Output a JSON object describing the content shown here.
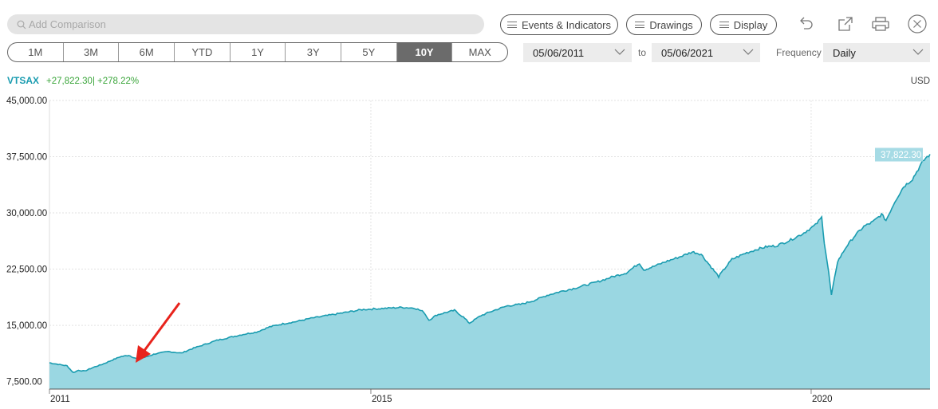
{
  "search": {
    "placeholder": "Add Comparison"
  },
  "toolbar": {
    "events_label": "Events & Indicators",
    "drawings_label": "Drawings",
    "display_label": "Display"
  },
  "icons": [
    "search-icon",
    "undo-icon",
    "popout-icon",
    "print-icon",
    "close-icon"
  ],
  "periods": [
    "1M",
    "3M",
    "6M",
    "YTD",
    "1Y",
    "3Y",
    "5Y",
    "10Y",
    "MAX"
  ],
  "active_period": "10Y",
  "date_range": {
    "start": "05/06/2011",
    "to_label": "to",
    "end": "05/06/2021"
  },
  "frequency": {
    "label": "Frequency",
    "value": "Daily"
  },
  "colors": {
    "line": "#1a9cb0",
    "fill": "#9ad7e2",
    "change": "#3aa53a",
    "active_period": "#6b6b6b"
  },
  "chart_data": {
    "type": "area",
    "ticker": "VTSAX",
    "change_abs": "+27,822.30",
    "change_pct": "+278.22%",
    "currency": "USD",
    "last_value_label": "37,822.30",
    "last_value": 37822.3,
    "ylim": [
      6500,
      45000
    ],
    "yticks": [
      7500,
      15000,
      22500,
      30000,
      37500,
      45000
    ],
    "ytick_labels": [
      "7,500.00",
      "15,000.00",
      "22,500.00",
      "30,000.00",
      "37,500.00",
      "45,000.00"
    ],
    "xticks": [
      2011.35,
      2015.0,
      2020.0
    ],
    "xtick_labels": [
      "2011",
      "2015",
      "2020"
    ],
    "xlim": [
      2011.35,
      2021.35
    ],
    "grid": true,
    "annotation": "red arrow pointing to the line in late 2011",
    "series": [
      {
        "x": [
          2011.35,
          2011.45,
          2011.55,
          2011.62,
          2011.68,
          2011.75,
          2011.85,
          2011.95,
          2012.05,
          2012.15,
          2012.25,
          2012.35,
          2012.45,
          2012.55,
          2012.7,
          2012.85,
          2012.95,
          2013.1,
          2013.25,
          2013.4,
          2013.55,
          2013.7,
          2013.85,
          2014.0,
          2014.15,
          2014.3,
          2014.45,
          2014.6,
          2014.75,
          2014.9,
          2015.05,
          2015.2,
          2015.35,
          2015.5,
          2015.6,
          2015.66,
          2015.75,
          2015.85,
          2015.95,
          2016.05,
          2016.12,
          2016.25,
          2016.4,
          2016.55,
          2016.7,
          2016.85,
          2017.0,
          2017.15,
          2017.3,
          2017.45,
          2017.6,
          2017.75,
          2017.9,
          2018.05,
          2018.1,
          2018.2,
          2018.35,
          2018.5,
          2018.65,
          2018.75,
          2018.85,
          2018.95,
          2019.0,
          2019.1,
          2019.25,
          2019.4,
          2019.5,
          2019.6,
          2019.75,
          2019.9,
          2020.05,
          2020.12,
          2020.15,
          2020.2,
          2020.23,
          2020.3,
          2020.4,
          2020.5,
          2020.6,
          2020.7,
          2020.8,
          2020.85,
          2020.95,
          2021.05,
          2021.15,
          2021.25,
          2021.3,
          2021.35
        ],
        "values": [
          10000,
          9800,
          9600,
          8700,
          9000,
          8900,
          9400,
          9800,
          10300,
          10800,
          11000,
          10500,
          10800,
          11200,
          11500,
          11300,
          11800,
          12400,
          13000,
          13400,
          13800,
          14100,
          14800,
          15200,
          15500,
          15900,
          16200,
          16500,
          16800,
          17100,
          17200,
          17300,
          17400,
          17300,
          16800,
          15700,
          16400,
          16700,
          17000,
          16100,
          15300,
          16300,
          17000,
          17600,
          17800,
          18300,
          19000,
          19500,
          19900,
          20400,
          20900,
          21500,
          22000,
          23300,
          22400,
          22800,
          23500,
          24100,
          24800,
          24500,
          23000,
          21500,
          22300,
          23800,
          24600,
          25200,
          25500,
          25600,
          26300,
          27200,
          28400,
          29400,
          26000,
          22000,
          19000,
          23500,
          25500,
          27000,
          28200,
          28800,
          29800,
          29000,
          31500,
          33500,
          34500,
          36500,
          37300,
          37822
        ]
      }
    ]
  }
}
